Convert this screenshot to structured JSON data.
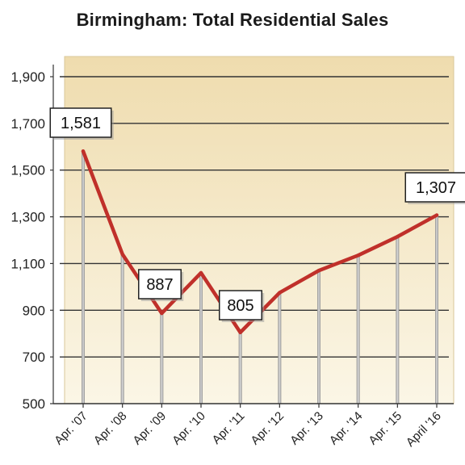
{
  "chart_data": {
    "type": "line",
    "title": "Birmingham: Total Residential Sales",
    "categories": [
      "Apr. '07",
      "Apr. '08",
      "Apr. '09",
      "Apr. '10",
      "Apr. '11",
      "Apr. '12",
      "Apr. '13",
      "Apr. '14",
      "Apr. '15",
      "April '16"
    ],
    "series": [
      {
        "values": [
          1581,
          1140,
          887,
          1060,
          805,
          975,
          1070,
          1135,
          1215,
          1307
        ]
      }
    ],
    "yticks": [
      "1,900",
      "1,700",
      "1,500",
      "1,300",
      "1,100",
      "900",
      "700",
      "500"
    ],
    "ytick_values": [
      1900,
      1700,
      1500,
      1300,
      1100,
      900,
      700,
      500
    ],
    "ylim": [
      500,
      1900
    ],
    "grid": "horizontal",
    "callouts": [
      {
        "index": 0,
        "text": "1,581"
      },
      {
        "index": 2,
        "text": "887"
      },
      {
        "index": 4,
        "text": "805"
      },
      {
        "index": 9,
        "text": "1,307"
      }
    ],
    "colors": {
      "line": "#c0302a",
      "plot_bg_top": "#efdcae",
      "plot_bg_bottom": "#fbf6e6",
      "grid": "#333333",
      "drop": "#a8a8a8"
    }
  }
}
